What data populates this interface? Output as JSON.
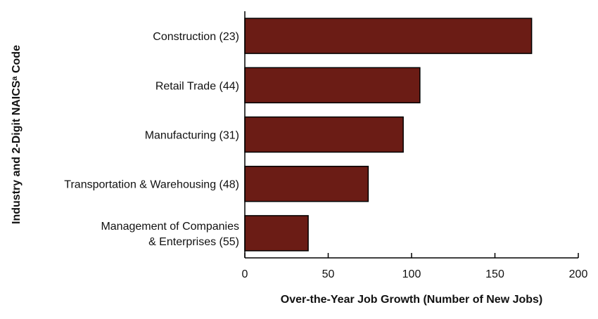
{
  "chart_data": {
    "type": "bar",
    "orientation": "horizontal",
    "categories": [
      [
        "Construction (23)"
      ],
      [
        "Retail Trade (44)"
      ],
      [
        "Manufacturing (31)"
      ],
      [
        "Transportation & Warehousing (48)"
      ],
      [
        "Management of Companies",
        "& Enterprises (55)"
      ]
    ],
    "values": [
      172,
      105,
      95,
      74,
      38
    ],
    "xlabel": "Over-the-Year Job Growth (Number of New Jobs)",
    "ylabel": "Industry and 2-Digit NAICSᵃ Code",
    "xlim": [
      0,
      200
    ],
    "xticks": [
      0,
      50,
      100,
      150,
      200
    ],
    "grid": false,
    "bar_color": "#6b1c15"
  }
}
